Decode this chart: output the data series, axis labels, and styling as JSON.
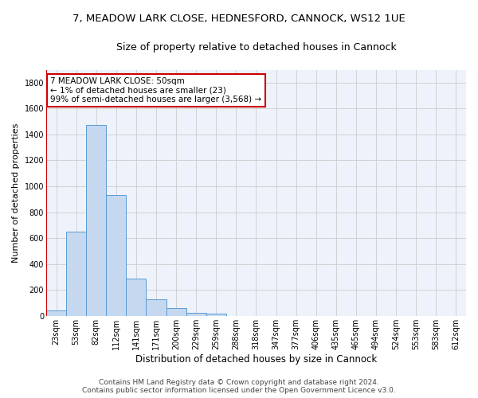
{
  "title_line1": "7, MEADOW LARK CLOSE, HEDNESFORD, CANNOCK, WS12 1UE",
  "title_line2": "Size of property relative to detached houses in Cannock",
  "xlabel": "Distribution of detached houses by size in Cannock",
  "ylabel": "Number of detached properties",
  "footer_line1": "Contains HM Land Registry data © Crown copyright and database right 2024.",
  "footer_line2": "Contains public sector information licensed under the Open Government Licence v3.0.",
  "annotation_line1": "7 MEADOW LARK CLOSE: 50sqm",
  "annotation_line2": "← 1% of detached houses are smaller (23)",
  "annotation_line3": "99% of semi-detached houses are larger (3,568) →",
  "bin_labels": [
    "23sqm",
    "53sqm",
    "82sqm",
    "112sqm",
    "141sqm",
    "171sqm",
    "200sqm",
    "229sqm",
    "259sqm",
    "288sqm",
    "318sqm",
    "347sqm",
    "377sqm",
    "406sqm",
    "435sqm",
    "465sqm",
    "494sqm",
    "524sqm",
    "553sqm",
    "583sqm",
    "612sqm"
  ],
  "bar_values": [
    40,
    650,
    1470,
    935,
    290,
    125,
    60,
    25,
    15,
    0,
    0,
    0,
    0,
    0,
    0,
    0,
    0,
    0,
    0,
    0,
    0
  ],
  "bar_color": "#c5d8ef",
  "bar_edge_color": "#5b9bd5",
  "highlight_color": "#cc0000",
  "vline_x": -0.5,
  "ylim": [
    0,
    1900
  ],
  "yticks": [
    0,
    200,
    400,
    600,
    800,
    1000,
    1200,
    1400,
    1600,
    1800
  ],
  "grid_color": "#cccccc",
  "bg_color": "#eef2fa",
  "annotation_box_color": "#cc0000",
  "title1_fontsize": 9.5,
  "title2_fontsize": 9,
  "ylabel_fontsize": 8,
  "xlabel_fontsize": 8.5,
  "tick_fontsize": 7,
  "annotation_fontsize": 7.5,
  "footer_fontsize": 6.5
}
